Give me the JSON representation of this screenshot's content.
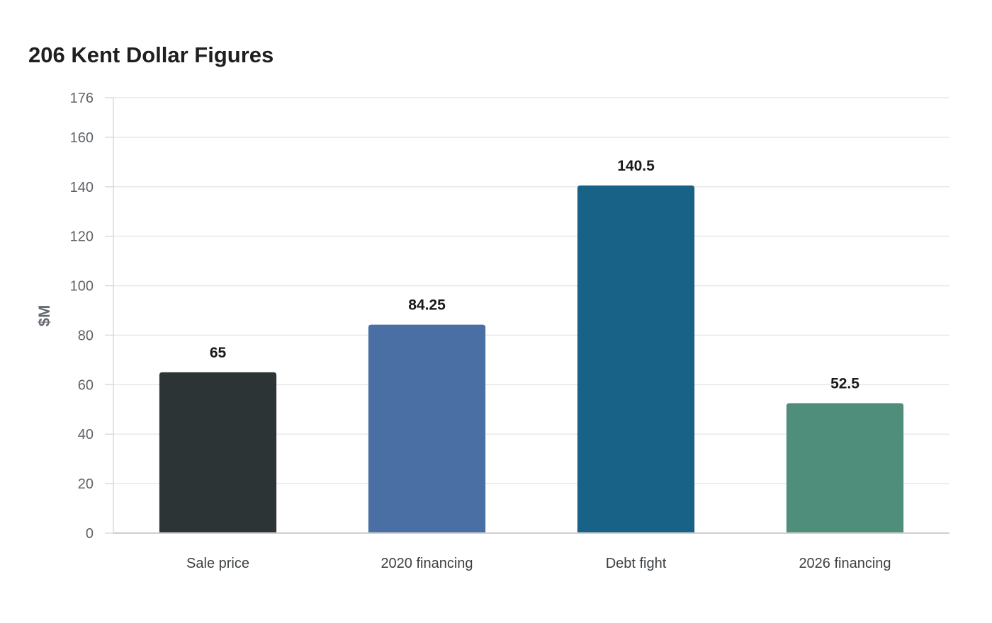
{
  "chart_data": {
    "type": "bar",
    "title": "206 Kent Dollar Figures",
    "xlabel": "",
    "ylabel": "$M",
    "categories": [
      "Sale price",
      "2020 financing",
      "Debt fight",
      "2026 financing"
    ],
    "values": [
      65,
      84.25,
      140.5,
      52.5
    ],
    "data_labels": [
      "65",
      "84.25",
      "140.5",
      "52.5"
    ],
    "colors": [
      "#2d3436",
      "#4a6fa5",
      "#186287",
      "#4e8e7b"
    ],
    "ylim": [
      0,
      176
    ],
    "yticks": [
      0,
      20,
      40,
      60,
      80,
      100,
      120,
      140,
      160,
      176
    ],
    "grid": true,
    "legend": "none"
  }
}
